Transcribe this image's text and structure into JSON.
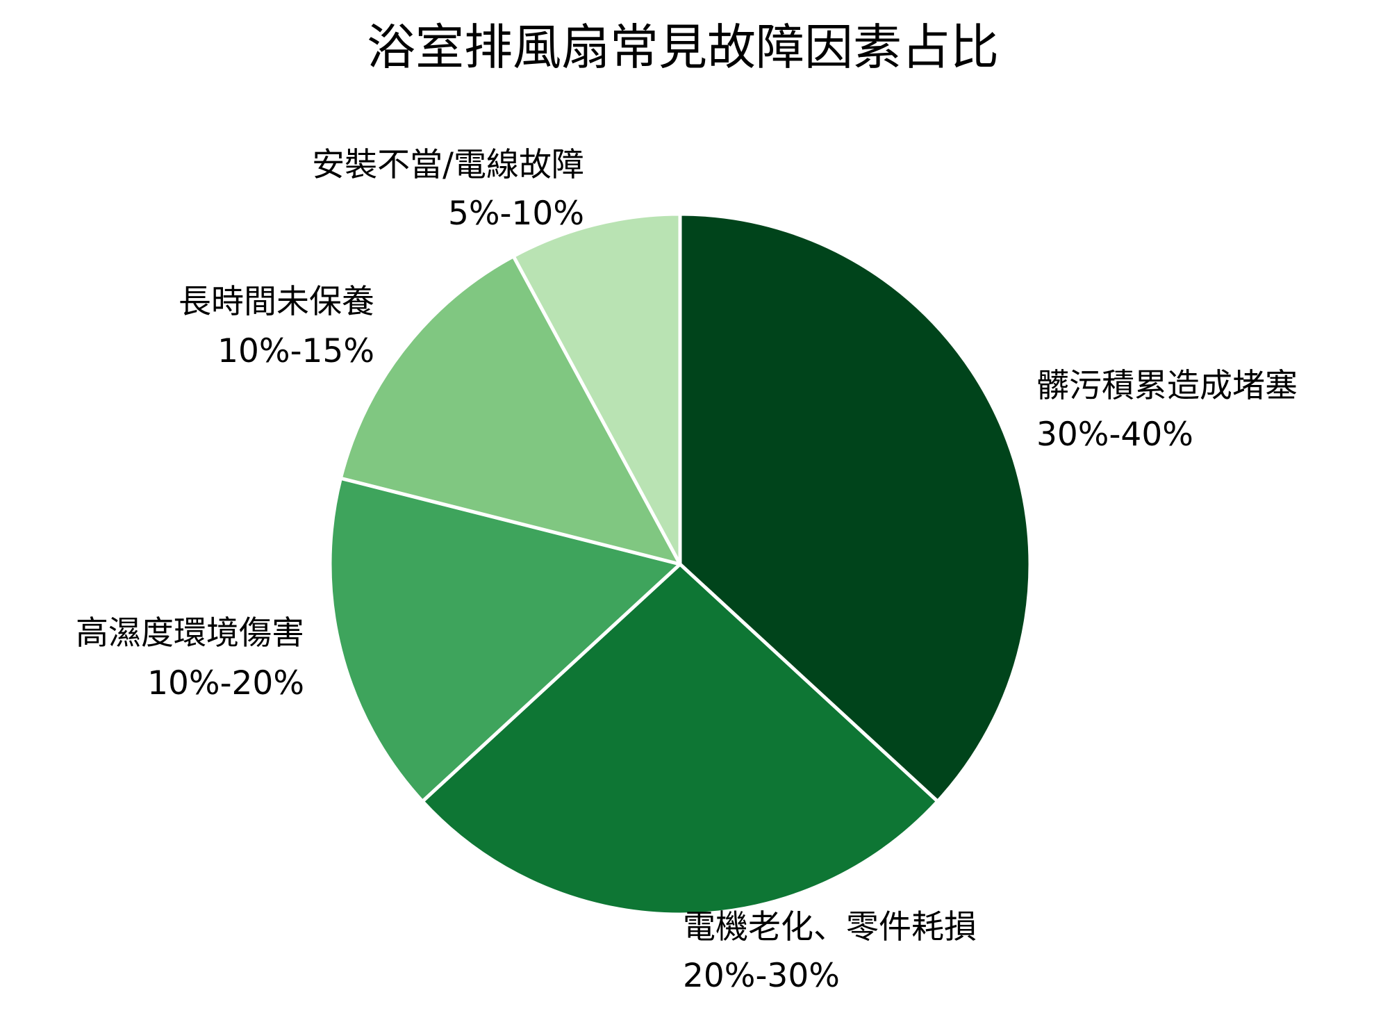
{
  "chart_data": {
    "type": "pie",
    "title": "浴室排風扇常見故障因素占比",
    "start_angle": "top",
    "direction": "clockwise",
    "slices": [
      {
        "label": "髒污積累造成堵塞",
        "range_text": "30%-40%",
        "value": 35,
        "color": "#00441b"
      },
      {
        "label": "電機老化、零件耗損",
        "range_text": "20%-30%",
        "value": 25,
        "color": "#0e7634"
      },
      {
        "label": "高濕度環境傷害",
        "range_text": "10%-20%",
        "value": 15,
        "color": "#3ea45c"
      },
      {
        "label": "長時間未保養",
        "range_text": "10%-15%",
        "value": 12.5,
        "color": "#80c781"
      },
      {
        "label": "安裝不當/電線故障",
        "range_text": "5%-10%",
        "value": 7.5,
        "color": "#b9e3b3"
      }
    ]
  }
}
